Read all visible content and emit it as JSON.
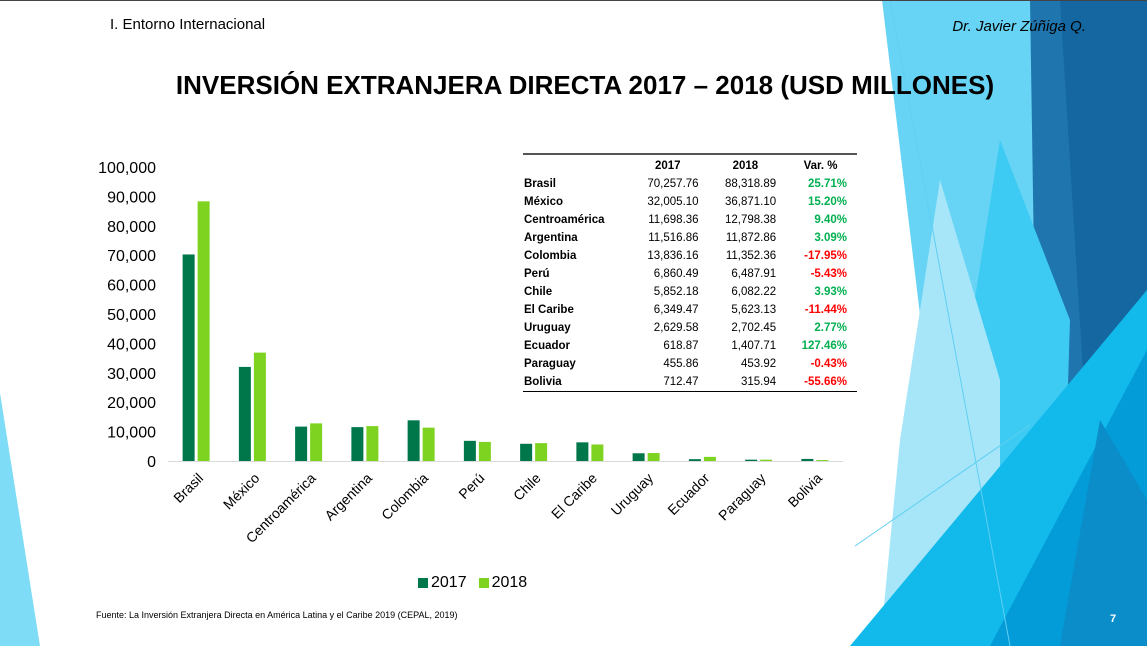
{
  "header": {
    "section": "I. Entorno Internacional",
    "author": "Dr. Javier Zúñiga Q.",
    "title": "INVERSIÓN EXTRANJERA DIRECTA 2017 – 2018 (USD MILLONES)"
  },
  "colors": {
    "series_2017": "#00774A",
    "series_2018": "#7ED321",
    "positive": "#00B050",
    "negative": "#FF0000"
  },
  "table": {
    "headers": [
      "",
      "2017",
      "2018",
      "Var. %"
    ],
    "rows": [
      {
        "name": "Brasil",
        "v2017": "70,257.76",
        "v2018": "88,318.89",
        "var": "25.71%",
        "sign": "positive"
      },
      {
        "name": "México",
        "v2017": "32,005.10",
        "v2018": "36,871.10",
        "var": "15.20%",
        "sign": "positive"
      },
      {
        "name": "Centroamérica",
        "v2017": "11,698.36",
        "v2018": "12,798.38",
        "var": "9.40%",
        "sign": "positive"
      },
      {
        "name": "Argentina",
        "v2017": "11,516.86",
        "v2018": "11,872.86",
        "var": "3.09%",
        "sign": "positive"
      },
      {
        "name": "Colombia",
        "v2017": "13,836.16",
        "v2018": "11,352.36",
        "var": "-17.95%",
        "sign": "negative"
      },
      {
        "name": "Perú",
        "v2017": "6,860.49",
        "v2018": "6,487.91",
        "var": "-5.43%",
        "sign": "negative"
      },
      {
        "name": "Chile",
        "v2017": "5,852.18",
        "v2018": "6,082.22",
        "var": "3.93%",
        "sign": "positive"
      },
      {
        "name": "El Caribe",
        "v2017": "6,349.47",
        "v2018": "5,623.13",
        "var": "-11.44%",
        "sign": "negative"
      },
      {
        "name": "Uruguay",
        "v2017": "2,629.58",
        "v2018": "2,702.45",
        "var": "2.77%",
        "sign": "positive"
      },
      {
        "name": "Ecuador",
        "v2017": "618.87",
        "v2018": "1,407.71",
        "var": "127.46%",
        "sign": "positive"
      },
      {
        "name": "Paraguay",
        "v2017": "455.86",
        "v2018": "453.92",
        "var": "-0.43%",
        "sign": "negative"
      },
      {
        "name": "Bolivia",
        "v2017": "712.47",
        "v2018": "315.94",
        "var": "-55.66%",
        "sign": "negative"
      }
    ]
  },
  "chart_data": {
    "type": "bar",
    "title": "INVERSIÓN EXTRANJERA DIRECTA 2017 – 2018 (USD MILLONES)",
    "xlabel": "",
    "ylabel": "",
    "categories": [
      "Brasil",
      "México",
      "Centroamérica",
      "Argentina",
      "Colombia",
      "Perú",
      "Chile",
      "El Caribe",
      "Uruguay",
      "Ecuador",
      "Paraguay",
      "Bolivia"
    ],
    "series": [
      {
        "name": "2017",
        "values": [
          70257.76,
          32005.1,
          11698.36,
          11516.86,
          13836.16,
          6860.49,
          5852.18,
          6349.47,
          2629.58,
          618.87,
          455.86,
          712.47
        ]
      },
      {
        "name": "2018",
        "values": [
          88318.89,
          36871.1,
          12798.38,
          11872.86,
          11352.36,
          6487.91,
          6082.22,
          5623.13,
          2702.45,
          1407.71,
          453.92,
          315.94
        ]
      }
    ],
    "ylim": [
      0,
      100000
    ],
    "yticks": [
      0,
      10000,
      20000,
      30000,
      40000,
      50000,
      60000,
      70000,
      80000,
      90000,
      100000
    ],
    "ytick_labels": [
      "0",
      "10,000",
      "20,000",
      "30,000",
      "40,000",
      "50,000",
      "60,000",
      "70,000",
      "80,000",
      "90,000",
      "100,000"
    ],
    "grid": false,
    "legend": "bottom-center",
    "legend_entries": [
      "2017",
      "2018"
    ]
  },
  "footer": {
    "source": "Fuente: La Inversión Extranjera Directa en América Latina y el Caribe 2019 (CEPAL, 2019)",
    "page_number": "7"
  }
}
